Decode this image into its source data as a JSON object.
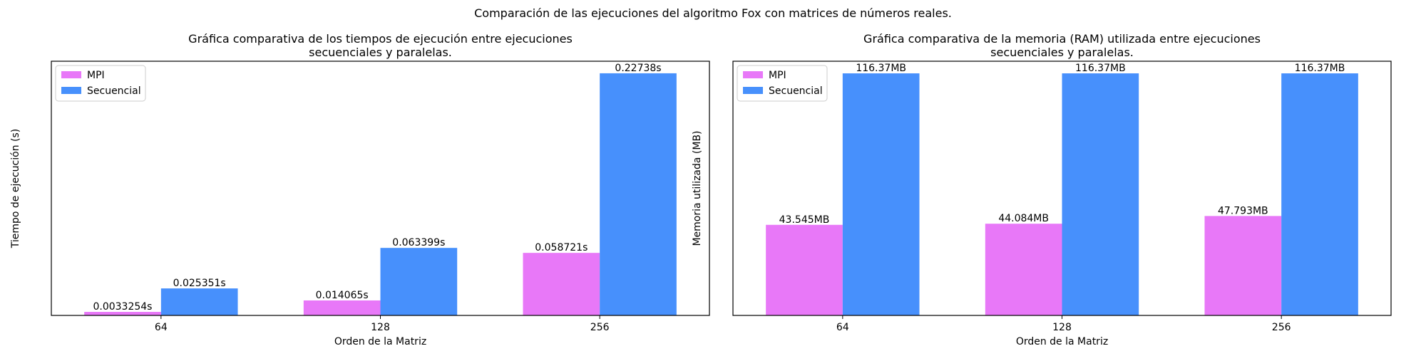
{
  "figure": {
    "suptitle": "Comparación de las ejecuciones del algoritmo Fox con matrices de números reales."
  },
  "chart_data": [
    {
      "type": "bar",
      "title": "Gráfica comparativa de los tiempos de ejecución entre ejecuciones\nsecuenciales y paralelas.",
      "xlabel": "Orden de la Matriz",
      "ylabel": "Tiempo de ejecución (s)",
      "categories": [
        "64",
        "128",
        "256"
      ],
      "ylim": [
        0,
        0.2387
      ],
      "show_y_ticks": false,
      "legend_position": "top-left",
      "series": [
        {
          "name": "MPI",
          "color": "#e878f8",
          "values": [
            0.0033254,
            0.014065,
            0.058721
          ],
          "labels": [
            "0.0033254s",
            "0.014065s",
            "0.058721s"
          ]
        },
        {
          "name": "Secuencial",
          "color": "#4790fc",
          "values": [
            0.025351,
            0.063399,
            0.22738
          ],
          "labels": [
            "0.025351s",
            "0.063399s",
            "0.22738s"
          ]
        }
      ]
    },
    {
      "type": "bar",
      "title": "Gráfica comparativa de la memoria (RAM) utilizada entre ejecuciones\nsecuenciales y paralelas.",
      "xlabel": "Orden de la Matriz",
      "ylabel": "Memoria utilizada (MB)",
      "categories": [
        "64",
        "128",
        "256"
      ],
      "ylim": [
        0,
        122.2
      ],
      "show_y_ticks": false,
      "legend_position": "top-left",
      "series": [
        {
          "name": "MPI",
          "color": "#e878f8",
          "values": [
            43.545,
            44.084,
            47.793
          ],
          "labels": [
            "43.545MB",
            "44.084MB",
            "47.793MB"
          ]
        },
        {
          "name": "Secuencial",
          "color": "#4790fc",
          "values": [
            116.37,
            116.37,
            116.37
          ],
          "labels": [
            "116.37MB",
            "116.37MB",
            "116.37MB"
          ]
        }
      ]
    }
  ]
}
